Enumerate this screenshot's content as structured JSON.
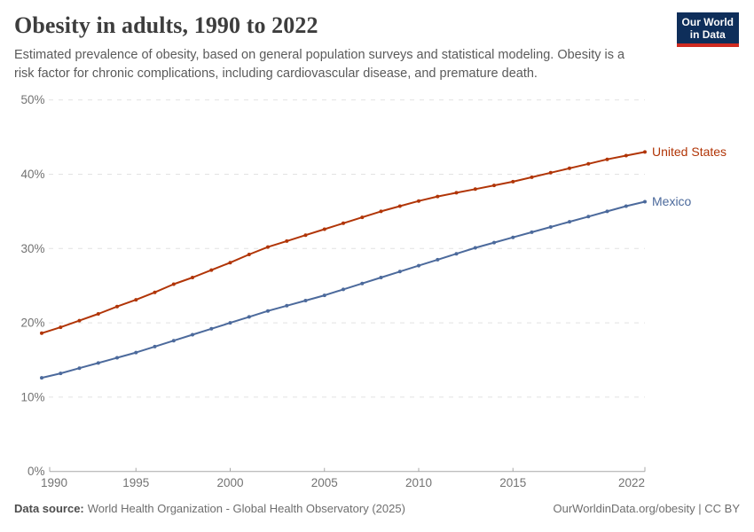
{
  "header": {
    "title": "Obesity in adults, 1990 to 2022",
    "subtitle": "Estimated prevalence of obesity, based on general population surveys and statistical modeling. Obesity is a risk factor for chronic complications, including cardiovascular disease, and premature death.",
    "logo": {
      "line1": "Our World",
      "line2": "in Data",
      "bg_color": "#0e2e5a",
      "accent_color": "#cf2a20"
    }
  },
  "chart_data": {
    "type": "line",
    "title": "Obesity in adults, 1990 to 2022",
    "xlabel": "",
    "ylabel": "",
    "xlim": [
      1990,
      2022
    ],
    "ylim": [
      0,
      50
    ],
    "grid": "horizontal-dashed",
    "legend": "line-end-labels",
    "marker": "dot",
    "x_ticks": [
      "1990",
      "1995",
      "2000",
      "2005",
      "2010",
      "2015",
      "2022"
    ],
    "x_tick_values": [
      1990,
      1995,
      2000,
      2005,
      2010,
      2015,
      2022
    ],
    "y_ticks": [
      "0%",
      "10%",
      "20%",
      "30%",
      "40%",
      "50%"
    ],
    "y_tick_values": [
      0,
      10,
      20,
      30,
      40,
      50
    ],
    "years": [
      1990,
      1991,
      1992,
      1993,
      1994,
      1995,
      1996,
      1997,
      1998,
      1999,
      2000,
      2001,
      2002,
      2003,
      2004,
      2005,
      2006,
      2007,
      2008,
      2009,
      2010,
      2011,
      2012,
      2013,
      2014,
      2015,
      2016,
      2017,
      2018,
      2019,
      2020,
      2021,
      2022
    ],
    "series": [
      {
        "name": "United States",
        "color": "#B13507",
        "values": [
          18.6,
          19.4,
          20.3,
          21.2,
          22.2,
          23.1,
          24.1,
          25.2,
          26.1,
          27.1,
          28.1,
          29.2,
          30.2,
          31.0,
          31.8,
          32.6,
          33.4,
          34.2,
          35.0,
          35.7,
          36.4,
          37.0,
          37.5,
          38.0,
          38.5,
          39.0,
          39.6,
          40.2,
          40.8,
          41.4,
          42.0,
          42.5,
          43.0
        ]
      },
      {
        "name": "Mexico",
        "color": "#4C6A9C",
        "values": [
          12.6,
          13.2,
          13.9,
          14.6,
          15.3,
          16.0,
          16.8,
          17.6,
          18.4,
          19.2,
          20.0,
          20.8,
          21.6,
          22.3,
          23.0,
          23.7,
          24.5,
          25.3,
          26.1,
          26.9,
          27.7,
          28.5,
          29.3,
          30.1,
          30.8,
          31.5,
          32.2,
          32.9,
          33.6,
          34.3,
          35.0,
          35.7,
          36.3
        ]
      }
    ]
  },
  "footer": {
    "datasource_label": "Data source:",
    "datasource": "World Health Organization - Global Health Observatory (2025)",
    "link": "OurWorldinData.org/obesity | CC BY"
  },
  "colors": {
    "grid": "#e2e2e2",
    "axis": "#a8a8a8",
    "tick_text": "#737373"
  }
}
